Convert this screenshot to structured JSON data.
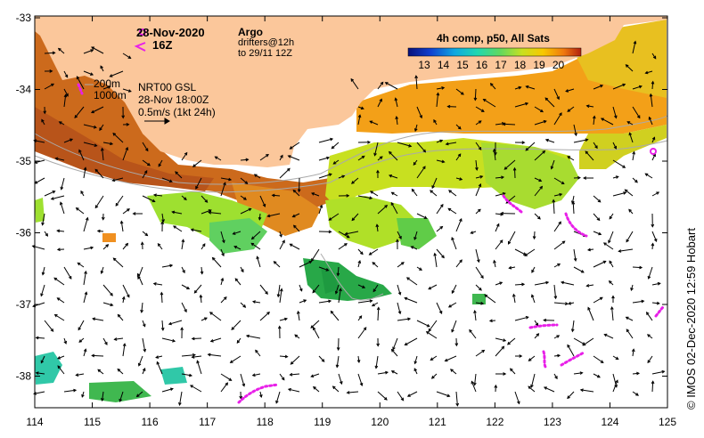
{
  "map": {
    "date": "28-Nov-2020",
    "hour": "16Z",
    "legend_argo": "Argo",
    "legend_drifters_1": "drifters@12h",
    "legend_drifters_2": "to 29/11 12Z",
    "isobath_1": "200m",
    "isobath_2": "1000m",
    "current_product": "NRT00 GSL",
    "current_time": "28-Nov 18:00Z",
    "current_scale": "0.5m/s (1kt 24h)",
    "sst_title": "4h comp, p50, All Sats",
    "colorbar_ticks": [
      "13",
      "14",
      "15",
      "16",
      "17",
      "18",
      "19",
      "20"
    ],
    "credit": "© IMOS 02-Dec-2020 12:59 Hobart",
    "colors": {
      "land": "#FBC79B",
      "argo": "#E820E8",
      "drifter": "#E820E8",
      "frame": "#000000"
    },
    "x_ticks": [
      "114",
      "115",
      "116",
      "117",
      "118",
      "119",
      "120",
      "121",
      "122",
      "123",
      "124",
      "125"
    ],
    "y_ticks": [
      "-33",
      "-34",
      "-35",
      "-36",
      "-37",
      "-38"
    ]
  }
}
